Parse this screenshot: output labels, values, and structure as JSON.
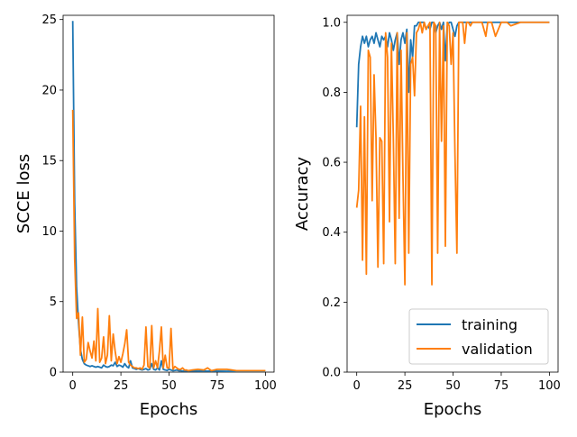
{
  "chart_data": [
    {
      "type": "line",
      "title": "",
      "xlabel": "Epochs",
      "ylabel": "SCCE loss",
      "xlim": [
        -5,
        104.5
      ],
      "ylim": [
        0,
        25.3
      ],
      "xticks": [
        0,
        25,
        50,
        75,
        100
      ],
      "yticks": [
        0,
        5,
        10,
        15,
        20,
        25
      ],
      "xtick_labels": [
        "0",
        "25",
        "50",
        "75",
        "100"
      ],
      "ytick_labels": [
        "0",
        "5",
        "10",
        "15",
        "20",
        "25"
      ],
      "grid": false,
      "series": [
        {
          "color": "#1f77b4",
          "x": [
            0,
            1,
            2,
            3,
            4,
            5,
            6,
            7,
            8,
            9,
            10,
            11,
            12,
            13,
            14,
            15,
            16,
            17,
            18,
            19,
            20,
            21,
            22,
            23,
            24,
            25,
            26,
            27,
            28,
            29,
            30,
            31,
            32,
            33,
            34,
            35,
            36,
            37,
            38,
            39,
            40,
            41,
            42,
            43,
            44,
            45,
            46,
            47,
            48,
            49,
            50,
            51,
            52,
            53,
            54,
            55,
            56,
            57,
            58,
            59,
            60,
            62,
            65,
            70,
            75,
            80,
            85,
            90,
            95,
            100
          ],
          "y": [
            24.9,
            12.0,
            6.0,
            3.5,
            1.6,
            0.9,
            0.6,
            0.5,
            0.45,
            0.4,
            0.45,
            0.4,
            0.35,
            0.4,
            0.35,
            0.3,
            0.5,
            0.4,
            0.35,
            0.4,
            0.5,
            0.45,
            0.7,
            0.4,
            0.5,
            0.45,
            0.35,
            0.6,
            0.4,
            0.3,
            0.8,
            0.3,
            0.25,
            0.2,
            0.25,
            0.2,
            0.15,
            0.2,
            0.25,
            0.15,
            0.2,
            0.6,
            0.2,
            0.15,
            0.3,
            0.15,
            0.8,
            0.2,
            0.15,
            0.12,
            0.2,
            0.15,
            0.1,
            0.12,
            0.15,
            0.1,
            0.1,
            0.08,
            0.08,
            0.08,
            0.08,
            0.08,
            0.07,
            0.07,
            0.07,
            0.06,
            0.06,
            0.06,
            0.06,
            0.06
          ]
        },
        {
          "color": "#ff7f0e",
          "x": [
            0,
            1,
            2,
            3,
            4,
            5,
            6,
            7,
            8,
            9,
            10,
            11,
            12,
            13,
            14,
            15,
            16,
            17,
            18,
            19,
            20,
            21,
            22,
            23,
            24,
            25,
            26,
            27,
            28,
            29,
            30,
            31,
            32,
            33,
            34,
            35,
            36,
            37,
            38,
            39,
            40,
            41,
            42,
            43,
            44,
            45,
            46,
            47,
            48,
            49,
            50,
            51,
            52,
            53,
            54,
            55,
            56,
            57,
            58,
            59,
            60,
            62,
            65,
            68,
            70,
            72,
            75,
            80,
            85,
            90,
            95,
            100
          ],
          "y": [
            18.6,
            8.0,
            3.8,
            4.2,
            1.2,
            3.9,
            0.7,
            0.9,
            2.1,
            1.5,
            1.0,
            2.2,
            0.8,
            4.5,
            0.7,
            1.0,
            2.5,
            0.6,
            1.2,
            4.0,
            0.8,
            2.7,
            1.5,
            0.6,
            1.1,
            0.7,
            1.3,
            2.0,
            3.0,
            0.7,
            0.5,
            0.4,
            0.3,
            0.3,
            0.25,
            0.3,
            0.2,
            0.5,
            3.2,
            0.4,
            0.3,
            3.3,
            0.3,
            0.8,
            0.3,
            1.5,
            3.2,
            0.3,
            1.2,
            0.3,
            0.3,
            3.1,
            0.2,
            0.4,
            0.3,
            0.2,
            0.2,
            0.3,
            0.15,
            0.15,
            0.1,
            0.15,
            0.2,
            0.15,
            0.3,
            0.1,
            0.2,
            0.2,
            0.1,
            0.1,
            0.1,
            0.1
          ]
        }
      ]
    },
    {
      "type": "line",
      "title": "",
      "xlabel": "Epochs",
      "ylabel": "Accuracy",
      "xlim": [
        -5,
        104.5
      ],
      "ylim": [
        0,
        1.02
      ],
      "xticks": [
        0,
        25,
        50,
        75,
        100
      ],
      "yticks": [
        0,
        0.2,
        0.4,
        0.6,
        0.8,
        1.0
      ],
      "xtick_labels": [
        "0",
        "25",
        "50",
        "75",
        "100"
      ],
      "ytick_labels": [
        "0.0",
        "0.2",
        "0.4",
        "0.6",
        "0.8",
        "1.0"
      ],
      "grid": false,
      "legend": {
        "placement": "lower right",
        "entries": [
          {
            "label": "training",
            "color": "#1f77b4"
          },
          {
            "label": "validation",
            "color": "#ff7f0e"
          }
        ]
      },
      "series": [
        {
          "name": "training",
          "color": "#1f77b4",
          "x": [
            0,
            1,
            2,
            3,
            4,
            5,
            6,
            7,
            8,
            9,
            10,
            11,
            12,
            13,
            14,
            15,
            16,
            17,
            18,
            19,
            20,
            21,
            22,
            23,
            24,
            25,
            26,
            27,
            28,
            29,
            30,
            31,
            32,
            33,
            34,
            35,
            36,
            37,
            38,
            39,
            40,
            41,
            42,
            43,
            44,
            45,
            46,
            47,
            48,
            49,
            50,
            51,
            52,
            53,
            54,
            55,
            56,
            57,
            58,
            59,
            60,
            65,
            70,
            75,
            80,
            85,
            90,
            95,
            100
          ],
          "y": [
            0.7,
            0.88,
            0.93,
            0.96,
            0.94,
            0.96,
            0.93,
            0.95,
            0.96,
            0.94,
            0.97,
            0.95,
            0.93,
            0.96,
            0.95,
            0.96,
            0.93,
            0.97,
            0.95,
            0.92,
            0.95,
            0.97,
            0.88,
            0.95,
            0.97,
            0.94,
            0.98,
            0.8,
            0.95,
            0.9,
            0.99,
            0.99,
            1.0,
            1.0,
            1.0,
            1.0,
            0.98,
            0.99,
            0.98,
            1.0,
            1.0,
            0.97,
            0.99,
            1.0,
            0.98,
            1.0,
            0.89,
            0.99,
            1.0,
            1.0,
            0.98,
            0.96,
            0.99,
            1.0,
            1.0,
            1.0,
            1.0,
            1.0,
            1.0,
            1.0,
            1.0,
            1.0,
            1.0,
            1.0,
            1.0,
            1.0,
            1.0,
            1.0,
            1.0
          ]
        },
        {
          "name": "validation",
          "color": "#ff7f0e",
          "x": [
            0,
            1,
            2,
            3,
            4,
            5,
            6,
            7,
            8,
            9,
            10,
            11,
            12,
            13,
            14,
            15,
            16,
            17,
            18,
            19,
            20,
            21,
            22,
            23,
            24,
            25,
            26,
            27,
            28,
            29,
            30,
            31,
            32,
            33,
            34,
            35,
            36,
            37,
            38,
            39,
            40,
            41,
            42,
            43,
            44,
            45,
            46,
            47,
            48,
            49,
            50,
            51,
            52,
            53,
            54,
            55,
            56,
            57,
            58,
            59,
            60,
            62,
            65,
            67,
            68,
            70,
            72,
            75,
            78,
            80,
            85,
            90,
            95,
            100
          ],
          "y": [
            0.47,
            0.52,
            0.76,
            0.32,
            0.73,
            0.28,
            0.92,
            0.9,
            0.49,
            0.85,
            0.67,
            0.3,
            0.67,
            0.66,
            0.31,
            0.97,
            0.9,
            0.43,
            0.94,
            0.67,
            0.31,
            0.97,
            0.44,
            0.92,
            0.56,
            0.25,
            0.97,
            0.34,
            0.88,
            0.9,
            0.79,
            0.97,
            0.98,
            1.0,
            0.97,
            1.0,
            0.98,
            0.99,
            1.0,
            0.25,
            1.0,
            0.99,
            0.34,
            1.0,
            0.66,
            0.99,
            0.36,
            1.0,
            0.99,
            0.88,
            0.97,
            0.62,
            0.34,
            1.0,
            1.0,
            1.0,
            0.94,
            1.0,
            1.0,
            0.99,
            1.0,
            1.0,
            1.0,
            0.96,
            1.0,
            1.0,
            0.96,
            1.0,
            1.0,
            0.99,
            1.0,
            1.0,
            1.0,
            1.0
          ]
        }
      ]
    }
  ]
}
